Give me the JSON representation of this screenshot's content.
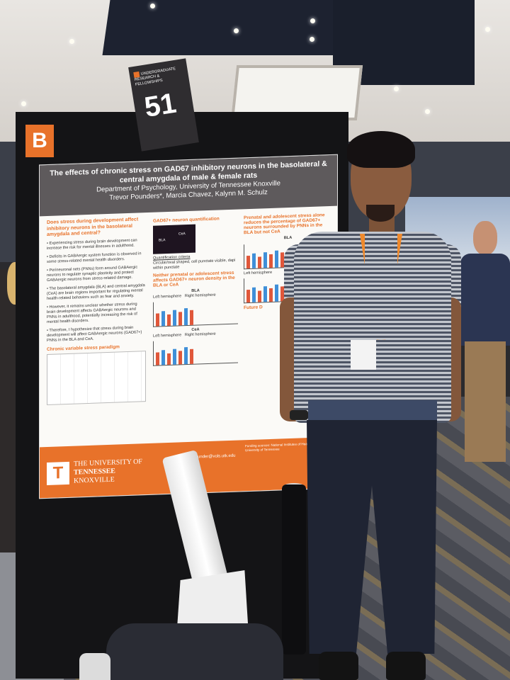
{
  "sign": {
    "header": "UNDERGRADUATE RESEARCH & FELLOWSHIPS",
    "number": "51"
  },
  "board_letter": "B",
  "poster": {
    "title": "The effects of chronic stress on GAD67 inhibitory neurons in the basolateral & central amygdala of male & female rats",
    "department": "Department of Psychology, University of Tennessee Knoxville",
    "authors": "Trevor Pounders*, Marcia Chavez, Kalynn M. Schulz",
    "question": "Does stress during development affect inhibitory neurons in the basolateral amygdala and central?",
    "bullets": [
      "Experiencing stress during brain development can increase the risk for mental illnesses in adulthood.",
      "Deficits in GABAergic system function is observed in some stress-related mental health disorders.",
      "Perineuronal nets (PNNs) form around GABAergic neurons to regulate synaptic plasticity and protect GABAergic neurons from stress-related damage.",
      "The basolateral amygdala (BLA) and central amygdala (CeA) are brain regions important for regulating mental health-related behaviors such as fear and anxiety.",
      "However, it remains unclear whether stress during brain development affects GABAergic neurons and PNNs in adulthood, potentially increasing the risk of mental health disorders.",
      "Therefore, I hypothesize that stress during brain development will affect GABAergic neurons (GAD67+) PNNs in the BLA and CeA."
    ],
    "paradigm_heading": "Chronic variable stress paradigm",
    "quant_heading": "GAD67+ neuron quantification",
    "quant_criteria": "Quantification criteria",
    "quant_detail": "Circular/oval shaped, cell punctate visible, dapi within punctate",
    "result_mid": "Neither prenatal or adolescent stress affects GAD67+ neuron density in the BLA or CeA",
    "result_right": "Prenatal and adolescent stress alone reduces the percentage of GAD67+ neurons surrounded by PNNs in the BLA but not CeA",
    "region_bla": "BLA",
    "region_cea": "CeA",
    "left_hemi": "Left hemisphere",
    "right_hemi": "Right hemisphere",
    "future_heading": "Future D",
    "email": "tpounder@vols.utk.edu",
    "university_line1": "THE UNIVERSITY OF",
    "university_line2": "TENNESSEE",
    "university_line3": "KNOXVILLE",
    "ut_logo": "T",
    "funding": "Funding sources: National Institutes of Health and University of Tennessee"
  },
  "colors": {
    "ut_orange": "#e8722a",
    "poster_header": "#5e5a5c",
    "lanyard": "#f08a2c"
  },
  "bar_chart_values": [
    0.6,
    0.7,
    0.55,
    0.75,
    0.65,
    0.8,
    0.7
  ]
}
